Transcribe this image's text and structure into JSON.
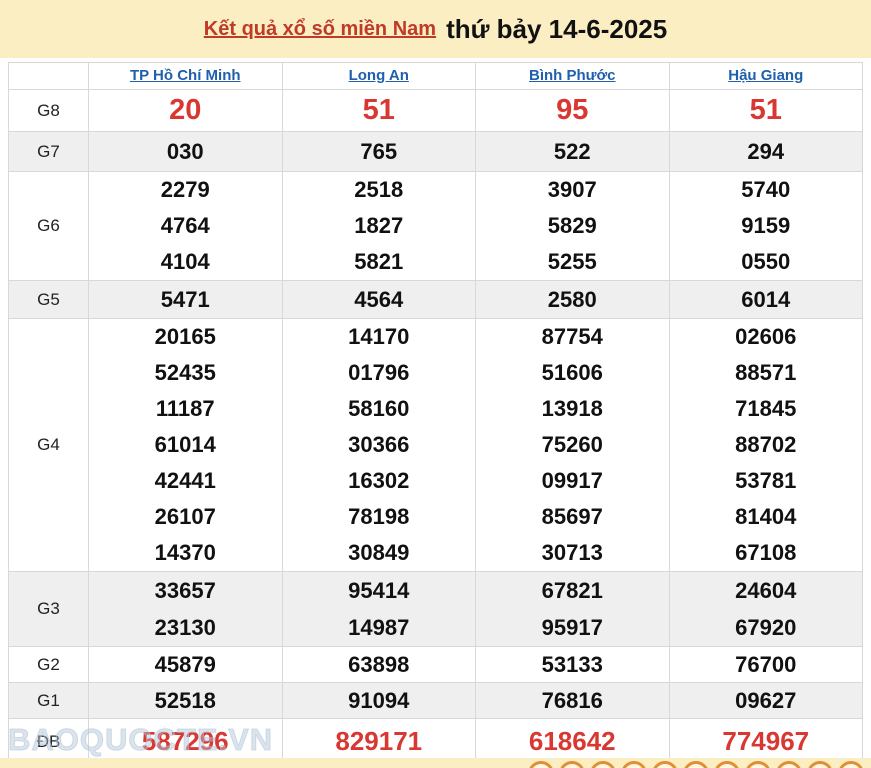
{
  "header": {
    "title_link": "Kết quả xổ số miền Nam",
    "title_date": "thứ bảy 14-6-2025"
  },
  "table": {
    "provinces": [
      "TP Hồ Chí Minh",
      "Long An",
      "Bình Phước",
      "Hậu Giang"
    ],
    "rows": [
      {
        "label": "G8",
        "highlight": "red",
        "values": [
          [
            "20"
          ],
          [
            "51"
          ],
          [
            "95"
          ],
          [
            "51"
          ]
        ]
      },
      {
        "label": "G7",
        "highlight": "none",
        "values": [
          [
            "030"
          ],
          [
            "765"
          ],
          [
            "522"
          ],
          [
            "294"
          ]
        ]
      },
      {
        "label": "G6",
        "highlight": "none",
        "values": [
          [
            "2279",
            "4764",
            "4104"
          ],
          [
            "2518",
            "1827",
            "5821"
          ],
          [
            "3907",
            "5829",
            "5255"
          ],
          [
            "5740",
            "9159",
            "0550"
          ]
        ]
      },
      {
        "label": "G5",
        "highlight": "none",
        "values": [
          [
            "5471"
          ],
          [
            "4564"
          ],
          [
            "2580"
          ],
          [
            "6014"
          ]
        ]
      },
      {
        "label": "G4",
        "highlight": "none",
        "values": [
          [
            "20165",
            "52435",
            "11187",
            "61014",
            "42441",
            "26107",
            "14370"
          ],
          [
            "14170",
            "01796",
            "58160",
            "30366",
            "16302",
            "78198",
            "30849"
          ],
          [
            "87754",
            "51606",
            "13918",
            "75260",
            "09917",
            "85697",
            "30713"
          ],
          [
            "02606",
            "88571",
            "71845",
            "88702",
            "53781",
            "81404",
            "67108"
          ]
        ]
      },
      {
        "label": "G3",
        "highlight": "none",
        "values": [
          [
            "33657",
            "23130"
          ],
          [
            "95414",
            "14987"
          ],
          [
            "67821",
            "95917"
          ],
          [
            "24604",
            "67920"
          ]
        ]
      },
      {
        "label": "G2",
        "highlight": "none",
        "values": [
          [
            "45879"
          ],
          [
            "63898"
          ],
          [
            "53133"
          ],
          [
            "76700"
          ]
        ]
      },
      {
        "label": "G1",
        "highlight": "none",
        "values": [
          [
            "52518"
          ],
          [
            "91094"
          ],
          [
            "76816"
          ],
          [
            "09627"
          ]
        ]
      },
      {
        "label": "ĐB",
        "highlight": "red",
        "values": [
          [
            "587296"
          ],
          [
            "829171"
          ],
          [
            "618642"
          ],
          [
            "774967"
          ]
        ]
      }
    ]
  },
  "watermark": "BAOQUOCTE.VN",
  "decor": {
    "ball_count": 11
  },
  "colors": {
    "banner_bg": "#fbeec3",
    "title_link_red": "#c03a28",
    "province_link_blue": "#1f5fad",
    "number_black": "#111111",
    "highlight_red": "#d93832",
    "stripe_gray": "#efefef",
    "grid_border": "#d8d8d8"
  }
}
